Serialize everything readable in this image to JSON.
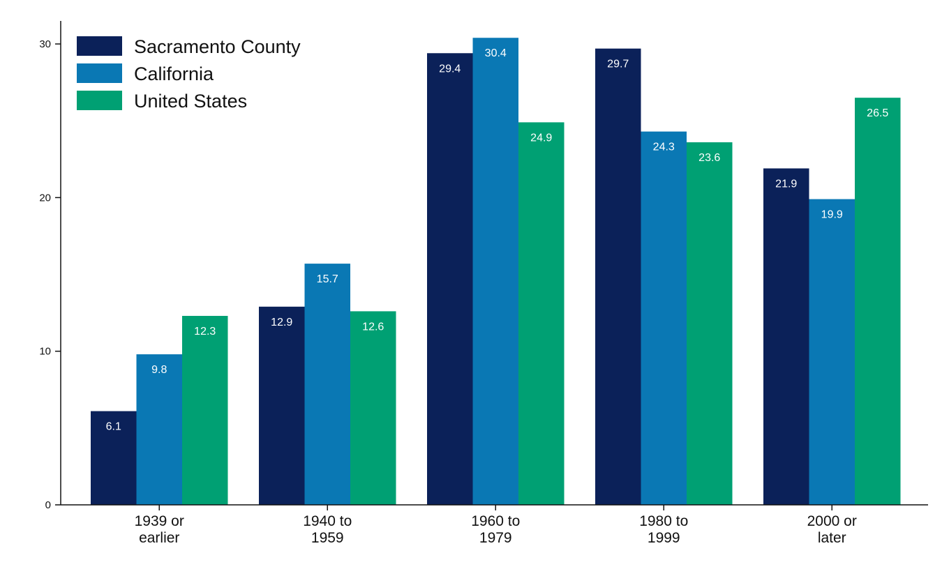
{
  "chart_data": {
    "type": "bar",
    "title": "",
    "xlabel": "",
    "ylabel": "",
    "ylim": [
      0,
      31.5
    ],
    "yticks": [
      0,
      10,
      20,
      30
    ],
    "grid": false,
    "legend_position": "top-left",
    "categories": [
      [
        "1939 or",
        "earlier"
      ],
      [
        "1940 to",
        "1959"
      ],
      [
        "1960 to",
        "1979"
      ],
      [
        "1980 to",
        "1999"
      ],
      [
        "2000 or",
        "later"
      ]
    ],
    "series": [
      {
        "name": "Sacramento County",
        "color": "#0b2159",
        "values": [
          6.1,
          12.9,
          29.4,
          29.7,
          21.9
        ]
      },
      {
        "name": "California",
        "color": "#0a78b4",
        "values": [
          9.8,
          15.7,
          30.4,
          24.3,
          19.9
        ]
      },
      {
        "name": "United States",
        "color": "#00a073",
        "values": [
          12.3,
          12.6,
          24.9,
          23.6,
          26.5
        ]
      }
    ]
  }
}
